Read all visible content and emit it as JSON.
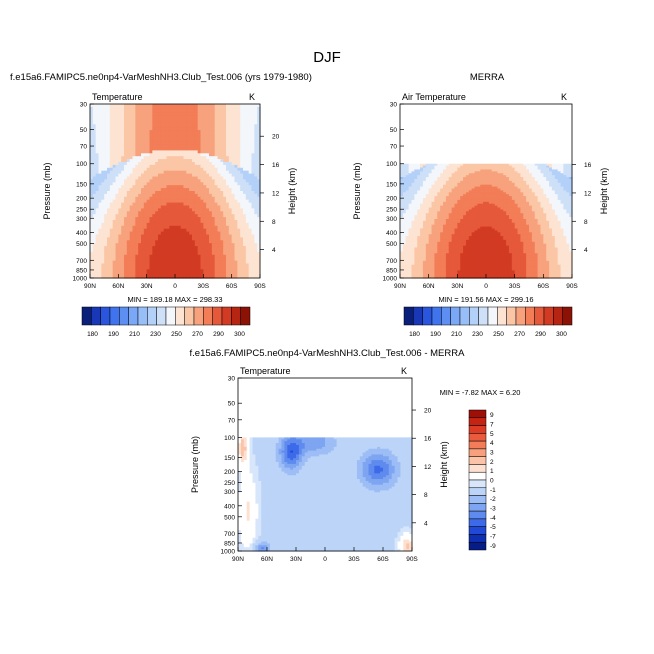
{
  "page_title": "DJF",
  "colors": {
    "cool_scale": [
      "#0a1f7a",
      "#1838b8",
      "#2a55dd",
      "#3f74ee",
      "#5d8ff3",
      "#7aa8f6",
      "#98bef8",
      "#b3d0f8",
      "#cde0f7"
    ],
    "warm_scale": [
      "#fde3d2",
      "#fbc6a5",
      "#f7a27c",
      "#f27d57",
      "#e6583a",
      "#d23b23",
      "#b52512",
      "#8c1206"
    ],
    "neutral": "#f3f6fb",
    "diff_cool": [
      "#d7e6fb",
      "#bcd4f8",
      "#9cbdf5",
      "#7ea5f1",
      "#5f8bee",
      "#3d6ae9",
      "#2049d8",
      "#0f2fb3",
      "#061c86"
    ],
    "diff_warm": [
      "#fde0d0",
      "#fbc4a8",
      "#f7a07e",
      "#f27d58",
      "#ea5a3c",
      "#dc3c26",
      "#c42412",
      "#9e1007"
    ],
    "diff_white": "#ffffff"
  },
  "chart_data": [
    {
      "type": "contour",
      "title": "f.e15a6.FAMIPC5.ne0np4-VarMeshNH3.Club_Test.006 (yrs 1979-1980)",
      "variable": "Temperature",
      "units": "K",
      "ylabel": "Pressure (mb)",
      "ylabel_right": "Height (km)",
      "x_ticks": [
        "90N",
        "60N",
        "30N",
        "0",
        "30S",
        "60S",
        "90S"
      ],
      "pressure_ticks": [
        "30",
        "50",
        "70",
        "100",
        "150",
        "200",
        "250",
        "300",
        "400",
        "500",
        "700",
        "850",
        "1000"
      ],
      "pressure_values": [
        30,
        50,
        70,
        100,
        150,
        200,
        250,
        300,
        400,
        500,
        700,
        850,
        1000
      ],
      "height_ticks": [
        "4",
        "8",
        "12",
        "16",
        "20"
      ],
      "min_max": "MIN = 189.18  MAX = 298.33",
      "colorbar_labels": [
        "180",
        "190",
        "210",
        "230",
        "250",
        "270",
        "290",
        "300"
      ],
      "data_top_pressure": 30
    },
    {
      "type": "contour",
      "title": "MERRA",
      "variable": "Air Temperature",
      "units": "K",
      "ylabel": "Pressure (mb)",
      "ylabel_right": "Height (km)",
      "x_ticks": [
        "90N",
        "60N",
        "30N",
        "0",
        "30S",
        "60S",
        "90S"
      ],
      "pressure_ticks": [
        "30",
        "50",
        "70",
        "100",
        "150",
        "200",
        "250",
        "300",
        "400",
        "500",
        "700",
        "850",
        "1000"
      ],
      "pressure_values": [
        30,
        50,
        70,
        100,
        150,
        200,
        250,
        300,
        400,
        500,
        700,
        850,
        1000
      ],
      "height_ticks": [
        "4",
        "8",
        "12",
        "16"
      ],
      "min_max": "MIN = 191.56  MAX = 299.16",
      "colorbar_labels": [
        "180",
        "190",
        "210",
        "230",
        "250",
        "270",
        "290",
        "300"
      ],
      "data_top_pressure": 100
    },
    {
      "type": "contour",
      "title": "f.e15a6.FAMIPC5.ne0np4-VarMeshNH3.Club_Test.006 - MERRA",
      "variable": "Temperature",
      "units": "K",
      "ylabel": "Pressure (mb)",
      "ylabel_right": "Height (km)",
      "x_ticks": [
        "90N",
        "60N",
        "30N",
        "0",
        "30S",
        "60S",
        "90S"
      ],
      "pressure_ticks": [
        "30",
        "50",
        "70",
        "100",
        "150",
        "200",
        "250",
        "300",
        "400",
        "500",
        "700",
        "850",
        "1000"
      ],
      "pressure_values": [
        30,
        50,
        70,
        100,
        150,
        200,
        250,
        300,
        400,
        500,
        700,
        850,
        1000
      ],
      "height_ticks": [
        "4",
        "8",
        "12",
        "16",
        "20"
      ],
      "min_max": "MIN = -7.82  MAX =  6.20",
      "colorbar_labels": [
        "9",
        "7",
        "5",
        "4",
        "3",
        "2",
        "1",
        "0",
        "-1",
        "-2",
        "-3",
        "-4",
        "-5",
        "-7",
        "-9"
      ],
      "data_top_pressure": 100
    }
  ]
}
